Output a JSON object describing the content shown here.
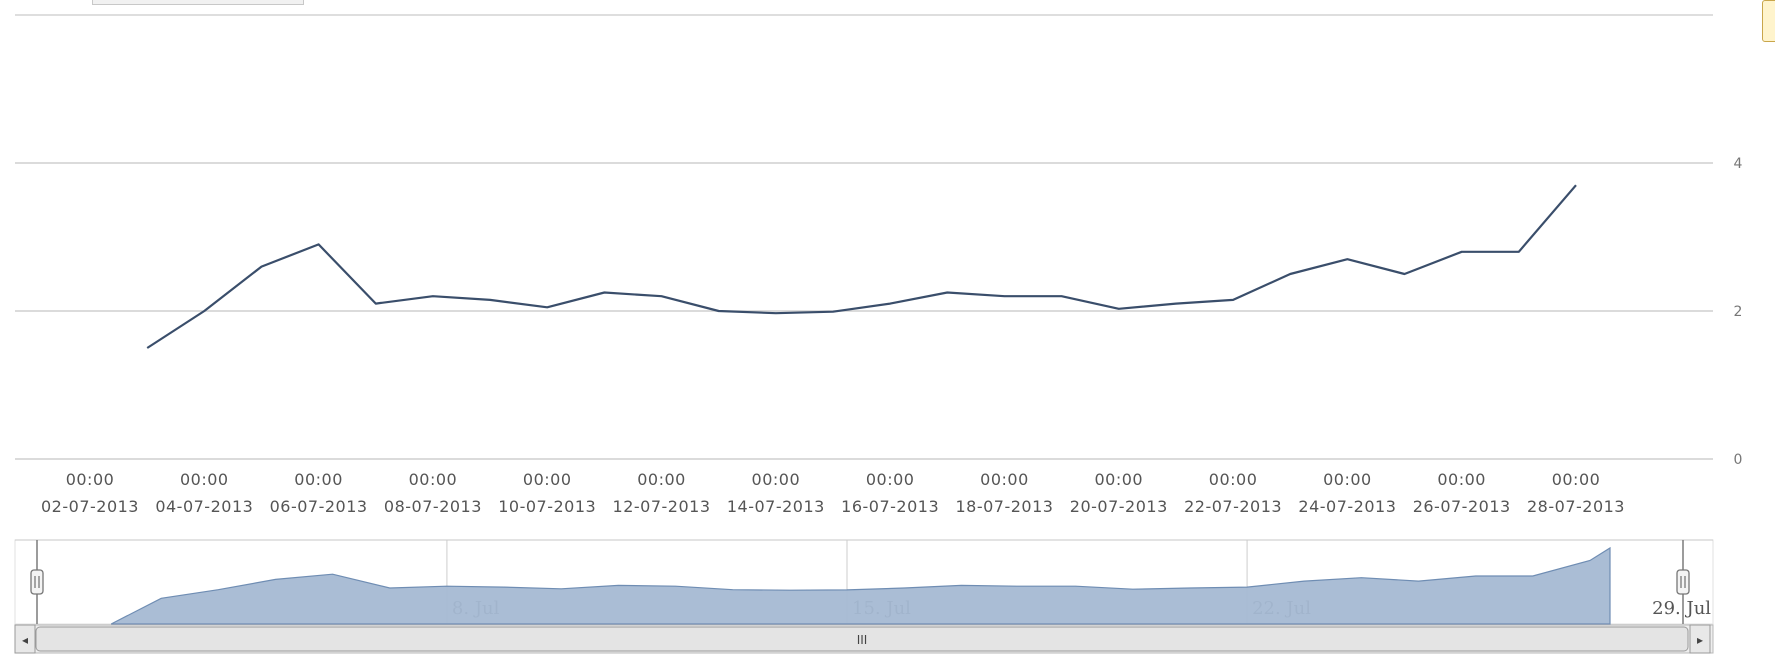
{
  "chart_data": {
    "type": "line",
    "title": "",
    "xlabel": "",
    "ylabel": "",
    "series": [
      {
        "values": [
          {
            "x": "2013-07-03",
            "y": 1.5
          },
          {
            "x": "2013-07-04",
            "y": 2.0
          },
          {
            "x": "2013-07-05",
            "y": 2.6
          },
          {
            "x": "2013-07-06",
            "y": 2.9
          },
          {
            "x": "2013-07-07",
            "y": 2.1
          },
          {
            "x": "2013-07-08",
            "y": 2.2
          },
          {
            "x": "2013-07-09",
            "y": 2.15
          },
          {
            "x": "2013-07-10",
            "y": 2.05
          },
          {
            "x": "2013-07-11",
            "y": 2.25
          },
          {
            "x": "2013-07-12",
            "y": 2.2
          },
          {
            "x": "2013-07-13",
            "y": 2.0
          },
          {
            "x": "2013-07-14",
            "y": 1.97
          },
          {
            "x": "2013-07-15",
            "y": 1.99
          },
          {
            "x": "2013-07-16",
            "y": 2.1
          },
          {
            "x": "2013-07-17",
            "y": 2.25
          },
          {
            "x": "2013-07-18",
            "y": 2.2
          },
          {
            "x": "2013-07-19",
            "y": 2.2
          },
          {
            "x": "2013-07-20",
            "y": 2.03
          },
          {
            "x": "2013-07-21",
            "y": 2.1
          },
          {
            "x": "2013-07-22",
            "y": 2.15
          },
          {
            "x": "2013-07-23",
            "y": 2.5
          },
          {
            "x": "2013-07-24",
            "y": 2.7
          },
          {
            "x": "2013-07-25",
            "y": 2.5
          },
          {
            "x": "2013-07-26",
            "y": 2.8
          },
          {
            "x": "2013-07-27",
            "y": 2.8
          },
          {
            "x": "2013-07-28",
            "y": 3.7
          }
        ],
        "color": "#3a4e6b"
      }
    ],
    "x_ticks": [
      {
        "date": "2013-07-02",
        "time": "00:00",
        "label": "02-07-2013"
      },
      {
        "date": "2013-07-04",
        "time": "00:00",
        "label": "04-07-2013"
      },
      {
        "date": "2013-07-06",
        "time": "00:00",
        "label": "06-07-2013"
      },
      {
        "date": "2013-07-08",
        "time": "00:00",
        "label": "08-07-2013"
      },
      {
        "date": "2013-07-10",
        "time": "00:00",
        "label": "10-07-2013"
      },
      {
        "date": "2013-07-12",
        "time": "00:00",
        "label": "12-07-2013"
      },
      {
        "date": "2013-07-14",
        "time": "00:00",
        "label": "14-07-2013"
      },
      {
        "date": "2013-07-16",
        "time": "00:00",
        "label": "16-07-2013"
      },
      {
        "date": "2013-07-18",
        "time": "00:00",
        "label": "18-07-2013"
      },
      {
        "date": "2013-07-20",
        "time": "00:00",
        "label": "20-07-2013"
      },
      {
        "date": "2013-07-22",
        "time": "00:00",
        "label": "22-07-2013"
      },
      {
        "date": "2013-07-24",
        "time": "00:00",
        "label": "24-07-2013"
      },
      {
        "date": "2013-07-26",
        "time": "00:00",
        "label": "26-07-2013"
      },
      {
        "date": "2013-07-28",
        "time": "00:00",
        "label": "28-07-2013"
      }
    ],
    "y_ticks": [
      {
        "value": 0,
        "label": "0"
      },
      {
        "value": 2,
        "label": "2"
      },
      {
        "value": 4,
        "label": "4"
      }
    ],
    "xlim": [
      "2013-07-02",
      "2013-07-28"
    ],
    "ylim": [
      0,
      4
    ],
    "grid": true,
    "navigator": {
      "labels": [
        {
          "date": "2013-07-08",
          "label": "8. Jul"
        },
        {
          "date": "2013-07-15",
          "label": "15. Jul"
        },
        {
          "date": "2013-07-22",
          "label": "22. Jul"
        },
        {
          "date": "2013-07-29",
          "label": "29. Jul"
        }
      ],
      "fill_color": "#a5b9d3",
      "scrollbar_grip": "III",
      "scroll_left_arrow": "◂",
      "scroll_right_arrow": "▸"
    }
  }
}
